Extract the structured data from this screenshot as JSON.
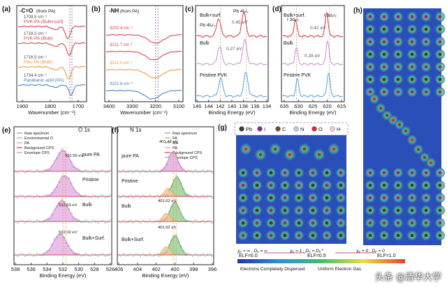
{
  "panels": {
    "a": {
      "letter": "(a)",
      "title": "-C=O",
      "title_note": "(from PA)",
      "xlabel": "Wavenumber (cm⁻¹)",
      "xticks": [
        "1900",
        "1800",
        "1700"
      ],
      "curves": [
        {
          "value": "1709.5 cm⁻¹",
          "name": "PVK-PA (Bulk+surf)",
          "color": "#d9363e"
        },
        {
          "value": "1718.0 cm⁻¹",
          "name": "PVK-PA (Bulk)",
          "color": "#d9363e"
        },
        {
          "value": "1716.5 cm⁻¹",
          "name": "PbI₂-PA (Bulk)",
          "color": "#f0902c"
        },
        {
          "value": "1734.4 cm⁻¹",
          "name": "Parabanic acid (PA)",
          "color": "#3a78c2"
        }
      ]
    },
    "b": {
      "letter": "(b)",
      "title": "-NH",
      "title_note": "(from PA)",
      "xlabel": "Wavenumber (cm⁻¹)",
      "xticks": [
        "3400",
        "3300",
        "3200",
        "3100"
      ],
      "peaks": [
        "3202.4 cm⁻¹",
        "3211.7 cm⁻¹",
        "3211.0 cm⁻¹",
        "3221.6 cm⁻¹"
      ],
      "peak_colors": [
        "#d9363e",
        "#d9363e",
        "#f0902c",
        "#3a78c2"
      ]
    },
    "c": {
      "letter": "(c)",
      "xlabel": "Binding Energy (eV)",
      "xticks": [
        "146",
        "144",
        "142",
        "140",
        "138",
        "136",
        "134"
      ],
      "rows": [
        "Bulk+surf.",
        "Bulk",
        "Pristine PVK"
      ],
      "peak_labels": [
        "Pb 4f₅/₂",
        "Pb 4f₇/₂"
      ],
      "shifts": [
        "0.45 eV",
        "0.27 eV"
      ]
    },
    "d": {
      "letter": "(d)",
      "xlabel": "Binding Energy (eV)",
      "xticks": [
        "635",
        "630",
        "625",
        "620",
        "615"
      ],
      "rows": [
        "Bulk+surf.",
        "Bulk",
        "Pristine PVK"
      ],
      "peak_labels": [
        "I 3d₃/₂",
        "I 3d₅/₂"
      ],
      "shifts": [
        "0.42 eV",
        "0.28 eV"
      ]
    },
    "e": {
      "letter": "(e)",
      "title": "O 1s",
      "xlabel": "Binding Energy (eV)",
      "xticks": [
        "538",
        "536",
        "534",
        "532",
        "530",
        "528",
        "526"
      ],
      "legend": [
        "Raw spectrum",
        "Environmental O",
        "PA",
        "Background CPS",
        "Envelope CPS"
      ],
      "rows": [
        "pure PA",
        "Pristine",
        "Bulk",
        "Bulk+Surf."
      ],
      "peaks": [
        "531.55 eV",
        "532.03 eV",
        "532.32 eV"
      ]
    },
    "f": {
      "letter": "(f)",
      "title": "N 1s",
      "xlabel": "Binding Energy (eV)",
      "xticks": [
        "406",
        "404",
        "402",
        "400",
        "398",
        "396"
      ],
      "legend": [
        "Raw spectrum",
        "FA",
        "MA",
        "PA",
        "Background CPS",
        "Envelope CPS"
      ],
      "rows": [
        "pure PA",
        "Pristine",
        "Bulk",
        "Bulk+Surf."
      ],
      "peaks": [
        "401.48 eV",
        "401.62 eV",
        "401.92 eV"
      ]
    },
    "g": {
      "letter": "(g)",
      "elements": [
        {
          "symbol": "Pb",
          "color": "#3a3a3a"
        },
        {
          "symbol": "I",
          "color": "#8b2a8b"
        },
        {
          "symbol": "C",
          "color": "#6e4a2a"
        },
        {
          "symbol": "N",
          "color": "#c0c8d8"
        },
        {
          "symbol": "O",
          "color": "#d32f2f"
        },
        {
          "symbol": "H",
          "color": "#f0c8c8"
        }
      ],
      "elf_ticks": [
        "ELF=0.0",
        "ELF=0.5",
        "ELF=1.0"
      ],
      "elf_desc": [
        "Electrons Completely Dispersed",
        "Uniform Electron Gas"
      ],
      "chi": [
        "χₑ = ∞ , Dₑ = ∞",
        "χₑ = 1 , Dₑ = Dₑ⁰",
        "χₑ = 0 , Dₑ = 0"
      ]
    },
    "h": {
      "letter": "(h)"
    }
  },
  "watermark": "头条 @清华大学"
}
